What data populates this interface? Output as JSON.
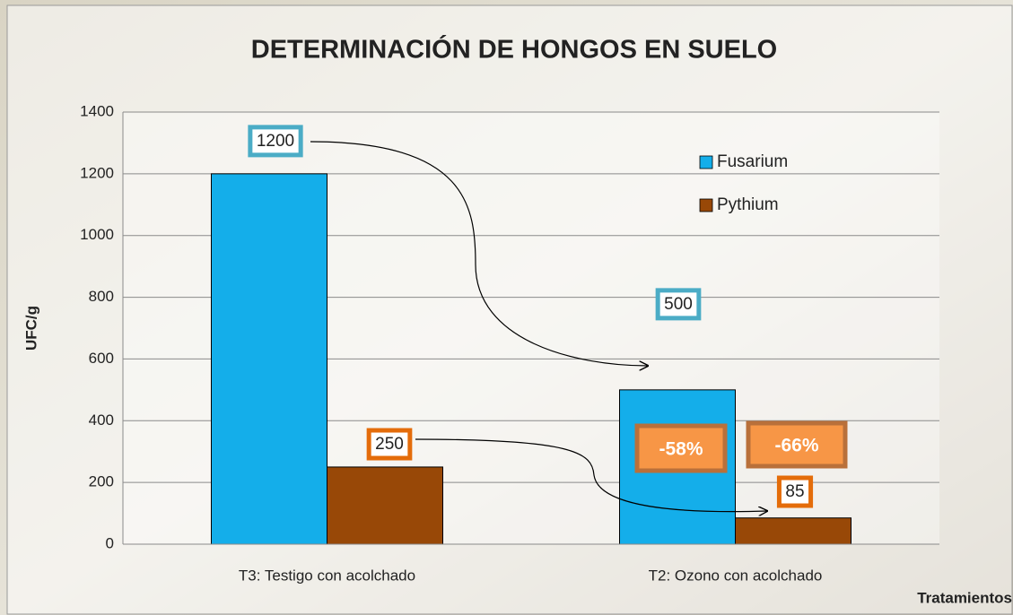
{
  "chart_data": {
    "type": "bar",
    "title": "DETERMINACIÓN DE HONGOS EN SUELO",
    "y_label": "UFC/g",
    "x_label": "Tratamientos",
    "categories": [
      "T3: Testigo con acolchado",
      "T2: Ozono con acolchado"
    ],
    "series": [
      {
        "name": "Fusarium",
        "color": "#14aeea",
        "values": [
          1200,
          500
        ]
      },
      {
        "name": "Pythium",
        "color": "#984807",
        "values": [
          250,
          85
        ]
      }
    ],
    "ylim": [
      0,
      1400
    ],
    "yticks": [
      0,
      200,
      400,
      600,
      800,
      1000,
      1200,
      1400
    ],
    "grid": true,
    "legend": "upper right",
    "annotations": [
      "-58%",
      "-66%"
    ]
  }
}
